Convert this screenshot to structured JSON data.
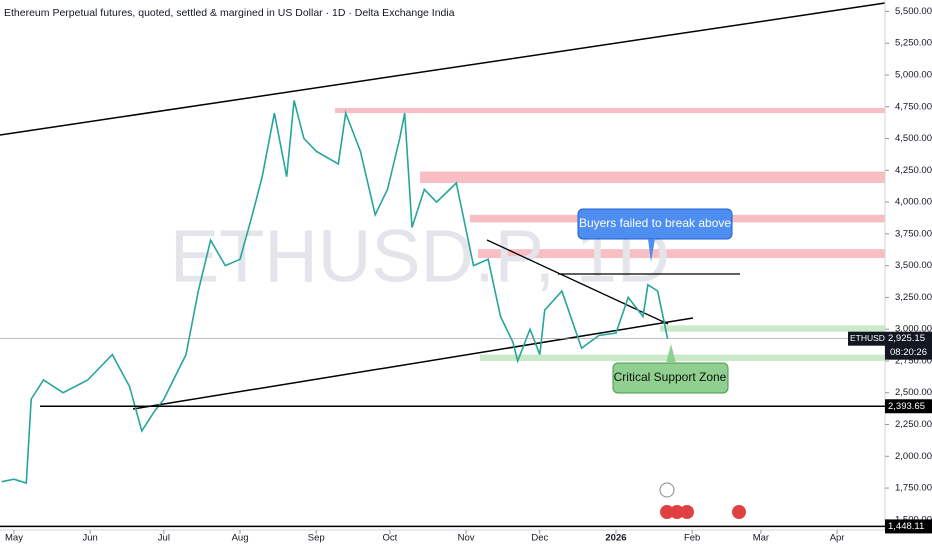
{
  "chart_data": {
    "type": "line",
    "title": "Ethereum Perpetual futures, quoted, settled & margined in US Dollar · 1D · Delta Exchange India",
    "watermark": "ETHUSD.P, 1D",
    "series": [
      {
        "name": "ETHUSD.P",
        "color": "#26a69a",
        "x": [
          -5,
          0,
          5,
          7,
          12,
          20,
          30,
          40,
          47,
          52,
          57,
          61,
          70,
          75,
          80,
          86,
          92,
          97,
          101,
          106,
          111,
          114,
          118,
          123,
          132,
          135,
          141,
          147,
          152,
          157,
          159,
          162,
          167,
          172,
          180,
          187,
          193,
          198,
          203,
          205,
          210,
          214,
          216,
          223,
          231,
          238,
          245,
          250,
          256,
          258,
          262,
          266
        ],
        "values": [
          1800,
          1820,
          1790,
          2450,
          2600,
          2500,
          2600,
          2800,
          2550,
          2200,
          2350,
          2450,
          2800,
          3300,
          3700,
          3500,
          3550,
          3900,
          4200,
          4700,
          4200,
          4800,
          4500,
          4400,
          4300,
          4700,
          4400,
          3900,
          4100,
          4500,
          4700,
          3800,
          4100,
          4000,
          4150,
          3500,
          3550,
          3100,
          2900,
          2750,
          3000,
          2800,
          3150,
          3300,
          2850,
          2950,
          2970,
          3250,
          3100,
          3350,
          3300,
          2925.15
        ]
      }
    ],
    "xlim": [
      -5.7,
      354.5
    ],
    "xticks": [
      {
        "value": 0,
        "label": "May"
      },
      {
        "value": 31,
        "label": "Jun"
      },
      {
        "value": 61,
        "label": "Jul"
      },
      {
        "value": 92,
        "label": "Aug"
      },
      {
        "value": 123,
        "label": "Sep"
      },
      {
        "value": 153,
        "label": "Oct"
      },
      {
        "value": 184,
        "label": "Nov"
      },
      {
        "value": 214,
        "label": "Dec"
      },
      {
        "value": 245,
        "label": "2026"
      },
      {
        "value": 276,
        "label": "Feb"
      },
      {
        "value": 304,
        "label": "Mar"
      },
      {
        "value": 335,
        "label": "Apr"
      }
    ],
    "ylim": [
      1420,
      5590
    ],
    "yticks": [
      {
        "value": 1500,
        "label": "1,500.00"
      },
      {
        "value": 1750,
        "label": "1,750.00"
      },
      {
        "value": 2000,
        "label": "2,000.00"
      },
      {
        "value": 2250,
        "label": "2,250.00"
      },
      {
        "value": 2500,
        "label": "2,500.00"
      },
      {
        "value": 2750,
        "label": "2,750.00"
      },
      {
        "value": 3000,
        "label": "3,000.00"
      },
      {
        "value": 3250,
        "label": "3,250.00"
      },
      {
        "value": 3500,
        "label": "3,500.00"
      },
      {
        "value": 3750,
        "label": "3,750.00"
      },
      {
        "value": 4000,
        "label": "4,000.00"
      },
      {
        "value": 4250,
        "label": "4,250.00"
      },
      {
        "value": 4500,
        "label": "4,500.00"
      },
      {
        "value": 4750,
        "label": "4,750.00"
      },
      {
        "value": 5000,
        "label": "5,000.00"
      },
      {
        "value": 5250,
        "label": "5,250.00"
      },
      {
        "value": 5500,
        "label": "5,500.00"
      }
    ],
    "last_price": {
      "value": 2925.15,
      "label": "2,925.15",
      "symbol": "ETHUSD.P",
      "countdown": "08:20:26"
    },
    "levels": [
      {
        "value": 2393.65,
        "label": "2,393.65"
      },
      {
        "value": 1448.11,
        "label": "1,448.11"
      }
    ],
    "zones": [
      {
        "from": 4700,
        "to": 4740,
        "color": "#f7b3b8"
      },
      {
        "from": 4150,
        "to": 4240,
        "color": "#f7b3b8"
      },
      {
        "from": 3840,
        "to": 3900,
        "color": "#f7b3b8"
      },
      {
        "from": 3560,
        "to": 3630,
        "color": "#f7b3b8"
      },
      {
        "from": 2980,
        "to": 3030,
        "color": "#bfe5bf"
      },
      {
        "from": 2750,
        "to": 2800,
        "color": "#bfe5bf"
      }
    ],
    "annotations": [
      "Buyers failed to break above",
      "Critical Support Zone"
    ]
  }
}
